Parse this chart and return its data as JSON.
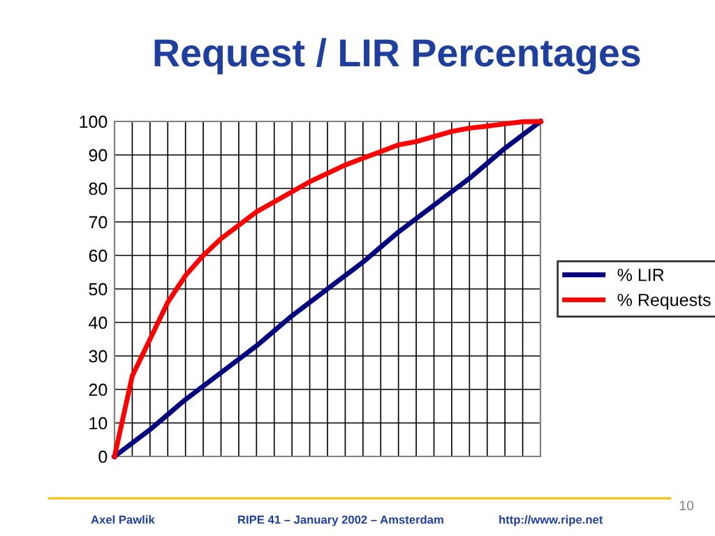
{
  "chart_data": {
    "type": "line",
    "title": "Request / LIR Percentages",
    "categories": [
      null,
      null,
      null,
      null,
      null,
      null,
      null,
      null,
      null,
      null,
      null,
      null,
      null,
      null,
      null,
      null,
      null,
      null,
      null,
      null,
      null,
      null,
      null,
      null,
      null
    ],
    "ylim": [
      0,
      100
    ],
    "yticks": [
      0,
      10,
      20,
      30,
      40,
      50,
      60,
      70,
      80,
      90,
      100
    ],
    "tick_labels": "y",
    "grid": true,
    "legend": "right",
    "series": [
      {
        "name": "% LIR",
        "color": "#000080",
        "values": [
          0,
          4,
          8,
          12.5,
          17,
          21,
          25,
          29,
          33,
          37.5,
          42,
          46,
          50,
          54,
          58,
          62.5,
          67,
          71,
          75,
          79,
          83,
          87.5,
          92,
          96,
          100
        ]
      },
      {
        "name": "% Requests",
        "color": "#ff0000",
        "values": [
          0,
          24,
          35,
          46,
          54,
          60,
          65,
          69,
          73,
          76,
          79,
          82,
          84.5,
          87,
          89,
          91,
          93,
          94,
          95.5,
          97,
          98,
          98.6,
          99.3,
          99.9,
          100
        ]
      }
    ],
    "annotations": [
      "Axel Pawlik",
      "RIPE 41 – January 2002 – Amsterdam",
      "http://www.ripe.net",
      "10"
    ]
  }
}
